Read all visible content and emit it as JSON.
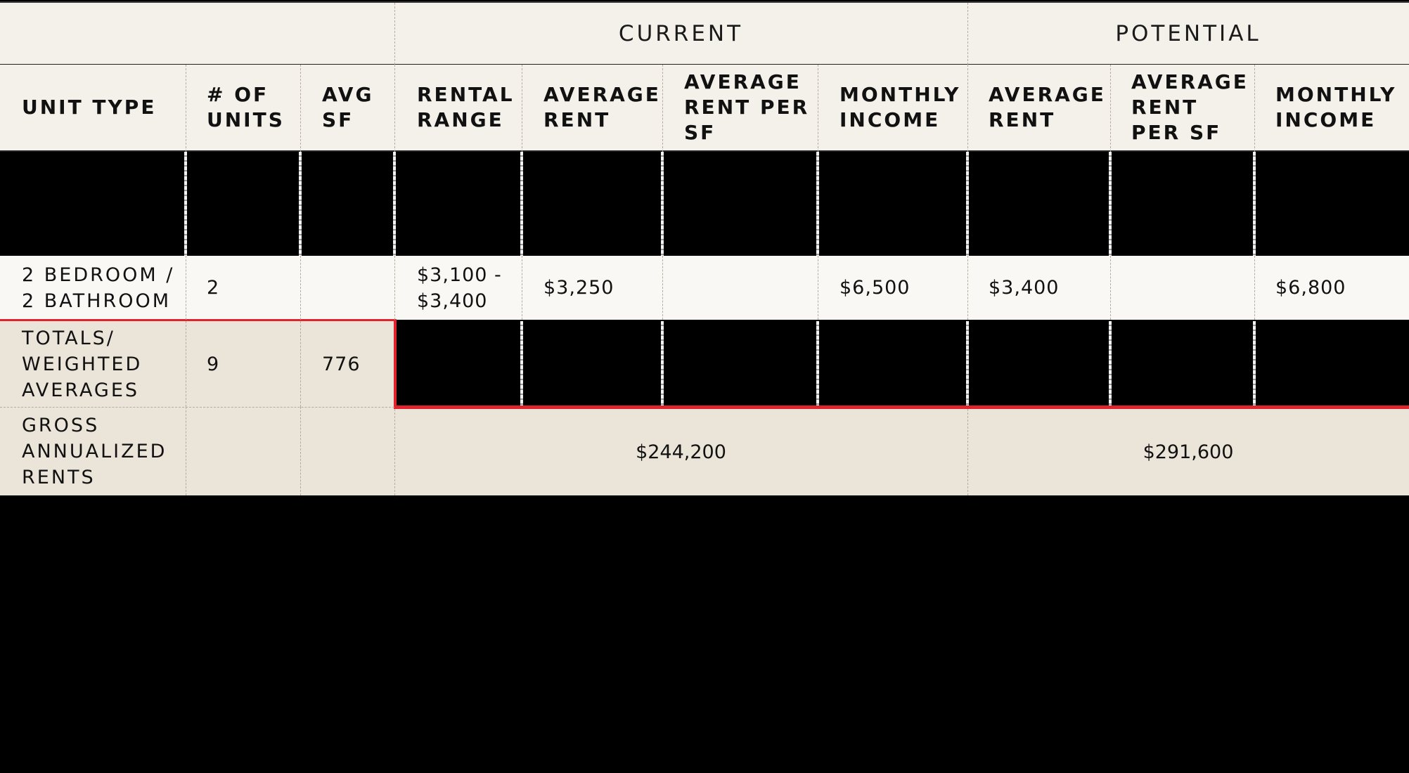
{
  "groups": {
    "current": "CURRENT",
    "potential": "POTENTIAL"
  },
  "headers": {
    "unit_type": "UNIT TYPE",
    "num_units": "# OF\nUNITS",
    "avg_sf": "AVG\nSF",
    "rental_range": "RENTAL\nRANGE",
    "current_average_rent": "AVERAGE\nRENT",
    "current_average_rent_per_sf": "AVERAGE\nRENT PER\nSF",
    "current_monthly_income": "MONTHLY\nINCOME",
    "potential_average_rent": "AVERAGE\nRENT",
    "potential_average_rent_per_sf": "AVERAGE\nRENT\nPER SF",
    "potential_monthly_income": "MONTHLY\nINCOME"
  },
  "rows": [
    {
      "unit_type": "2 BEDROOM /\n2 BATHROOM",
      "num_units": "2",
      "avg_sf": "",
      "rental_range": "$3,100 -\n$3,400",
      "current_average_rent": "$3,250",
      "current_average_rent_per_sf": "",
      "current_monthly_income": "$6,500",
      "potential_average_rent": "$3,400",
      "potential_average_rent_per_sf": "",
      "potential_monthly_income": "$6,800"
    }
  ],
  "totals": {
    "label": "TOTALS/\nWEIGHTED\nAVERAGES",
    "num_units": "9",
    "avg_sf": "776"
  },
  "gross": {
    "label": "GROSS\nANNUALIZED\nRENTS",
    "current": "$244,200",
    "potential": "$291,600"
  },
  "colors": {
    "header_background": "#f4f1ea",
    "row_background": "#f9f8f5",
    "totals_background": "#ebe4d8",
    "accent_red": "#e0232d"
  }
}
